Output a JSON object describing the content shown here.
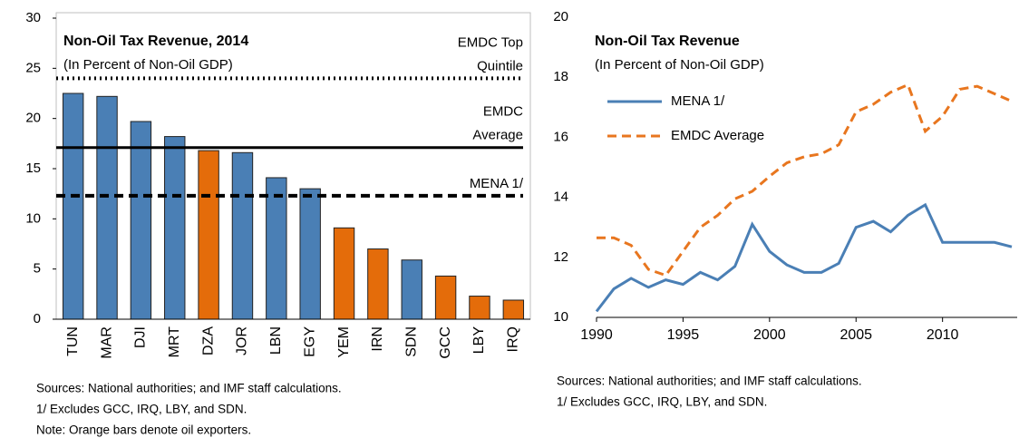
{
  "chart_data": [
    {
      "type": "bar",
      "title": "Non-Oil Tax Revenue, 2014",
      "subtitle": "(In Percent of Non-Oil GDP)",
      "categories": [
        "TUN",
        "MAR",
        "DJI",
        "MRT",
        "DZA",
        "JOR",
        "LBN",
        "EGY",
        "YEM",
        "IRN",
        "SDN",
        "GCC",
        "LBY",
        "IRQ"
      ],
      "values": [
        22.5,
        22.2,
        19.7,
        18.2,
        16.8,
        16.6,
        14.1,
        13.0,
        9.1,
        7.0,
        5.9,
        4.3,
        2.3,
        1.9
      ],
      "colors": [
        "#4a7fb5",
        "#4a7fb5",
        "#4a7fb5",
        "#4a7fb5",
        "#e46c0a",
        "#4a7fb5",
        "#4a7fb5",
        "#4a7fb5",
        "#e46c0a",
        "#e46c0a",
        "#4a7fb5",
        "#e46c0a",
        "#e46c0a",
        "#e46c0a"
      ],
      "ylim": [
        0,
        30
      ],
      "yticks": [
        0,
        5,
        10,
        15,
        20,
        25,
        30
      ],
      "reference_lines": [
        {
          "label_lines": [
            "EMDC Top",
            "Quintile"
          ],
          "value": 24,
          "style": "dotted",
          "color": "#000000"
        },
        {
          "label_lines": [
            "EMDC",
            "Average"
          ],
          "value": 17.1,
          "style": "solid",
          "color": "#000000"
        },
        {
          "label_lines": [
            "MENA 1/"
          ],
          "value": 12.3,
          "style": "dashed",
          "color": "#000000"
        }
      ],
      "notes": [
        "Sources:  National authorities; and IMF staff calculations.",
        "1/ Excludes GCC, IRQ, LBY, and SDN.",
        "Note:  Orange bars denote oil exporters."
      ]
    },
    {
      "type": "line",
      "title": "Non-Oil Tax Revenue",
      "subtitle": "(In Percent of Non-Oil GDP)",
      "x": [
        1990,
        1991,
        1992,
        1993,
        1994,
        1995,
        1996,
        1997,
        1998,
        1999,
        2000,
        2001,
        2002,
        2003,
        2004,
        2005,
        2006,
        2007,
        2008,
        2009,
        2010,
        2011,
        2012,
        2013,
        2014
      ],
      "series": [
        {
          "name": "MENA 1/",
          "color": "#4a7fb5",
          "style": "solid",
          "values": [
            10.2,
            10.95,
            11.3,
            11.0,
            11.25,
            11.1,
            11.5,
            11.25,
            11.7,
            13.1,
            12.2,
            11.75,
            11.5,
            11.5,
            11.8,
            13.0,
            13.2,
            12.85,
            13.4,
            13.75,
            12.5,
            12.5,
            12.5,
            12.5,
            12.35
          ]
        },
        {
          "name": "EMDC Average",
          "color": "#e8761f",
          "style": "dashed",
          "values": [
            12.65,
            12.65,
            12.4,
            11.6,
            11.4,
            12.2,
            13.0,
            13.4,
            13.95,
            14.2,
            14.7,
            15.15,
            15.35,
            15.45,
            15.75,
            16.85,
            17.1,
            17.5,
            17.75,
            16.2,
            16.7,
            17.6,
            17.7,
            17.45,
            17.2
          ]
        }
      ],
      "xlim": [
        1990,
        2014
      ],
      "xticks": [
        1990,
        1995,
        2000,
        2005,
        2010
      ],
      "ylim": [
        10,
        20
      ],
      "yticks": [
        10,
        12,
        14,
        16,
        18,
        20
      ],
      "notes": [
        "Sources:  National authorities; and IMF staff calculations.",
        "1/ Excludes GCC, IRQ, LBY, and SDN."
      ]
    }
  ]
}
